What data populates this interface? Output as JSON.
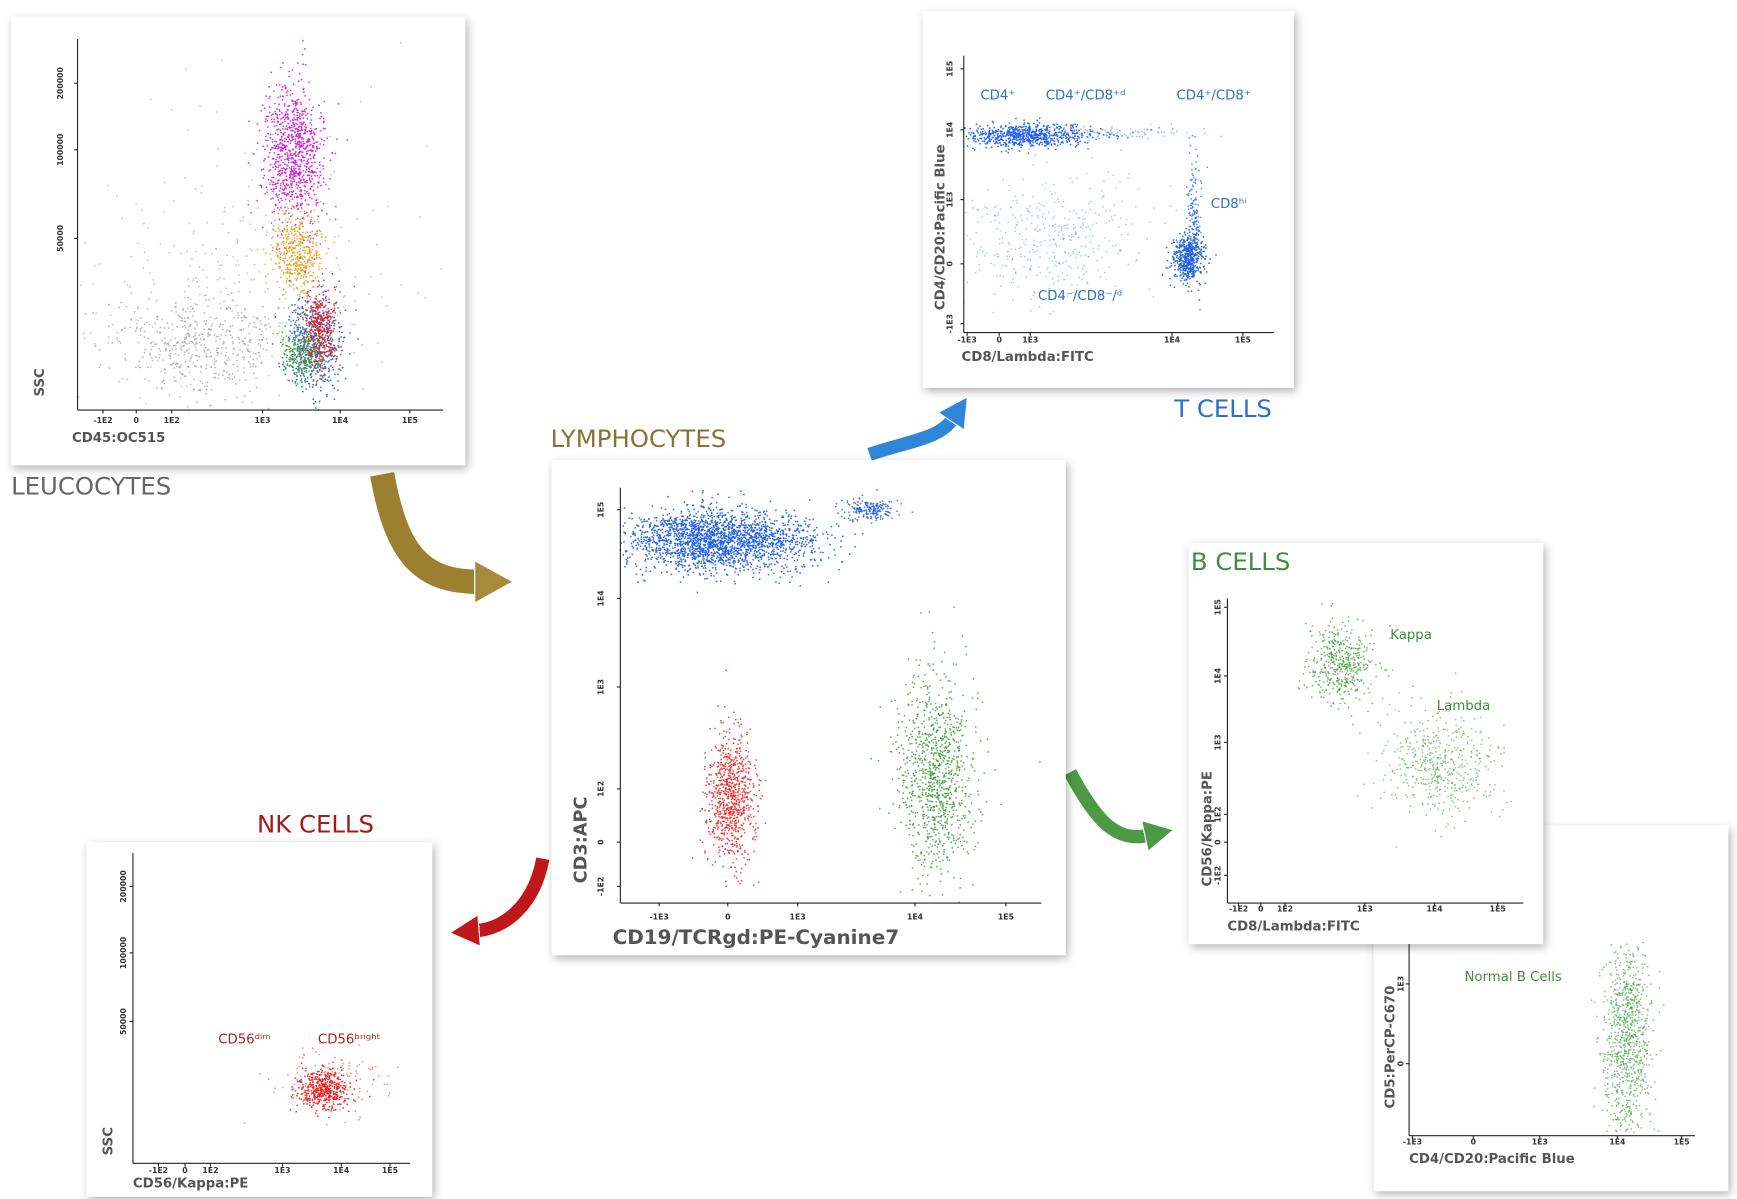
{
  "panels": [
    {
      "caption": "LEUCOCYTES",
      "x_axis": "CD45:OC515",
      "y_axis": "SSC",
      "xticks": [
        "-1E2",
        "0",
        "1E2",
        "1E3",
        "1E4",
        "1E5"
      ],
      "yticks": [
        "200000",
        "100000",
        "50000"
      ],
      "labels": []
    },
    {
      "caption": "T CELLS",
      "x_axis": "CD8/Lambda:FITC",
      "y_axis": "CD4/CD20:Pacific Blue",
      "xticks": [
        "-1E3",
        "0",
        "1E3",
        "1E4",
        "1E5"
      ],
      "yticks": [
        "1E5",
        "1E4",
        "1E3",
        "0",
        "-1E3"
      ],
      "labels": [
        "CD4⁺",
        "CD4⁺/CD8⁺ᵈ",
        "CD4⁺/CD8⁺",
        "CD8ʰⁱ",
        "CD4⁻/CD8⁻/ᵈ"
      ]
    },
    {
      "caption": "LYMPHOCYTES",
      "x_axis": "CD19/TCRgd:PE-Cyanine7",
      "y_axis": "CD3:APC",
      "xticks": [
        "-1E3",
        "0",
        "1E3",
        "1E4",
        "1E5"
      ],
      "yticks": [
        "1E5",
        "1E4",
        "1E3",
        "1E2",
        "0",
        "-1E2"
      ],
      "labels": []
    },
    {
      "caption": "B CELLS",
      "x_axis": "CD8/Lambda:FITC",
      "y_axis": "CD56/Kappa:PE",
      "xticks": [
        "-1E2",
        "0",
        "1E2",
        "1E3",
        "1E4",
        "1E5"
      ],
      "yticks": [
        "1E5",
        "1E4",
        "1E3",
        "1E2",
        "0",
        "-1E2"
      ],
      "labels": [
        "Kappa",
        "Lambda"
      ]
    },
    {
      "x_axis": "CD4/CD20:Pacific Blue",
      "y_axis": "CD5:PerCP-C670",
      "xticks": [
        "-1E3",
        "0",
        "1E3",
        "1E4",
        "1E5"
      ],
      "yticks": [
        "1E3",
        "0"
      ],
      "labels": [
        "Normal B Cells"
      ]
    },
    {
      "caption": "NK CELLS",
      "x_axis": "CD56/Kappa:PE",
      "y_axis": "SSC",
      "xticks": [
        "-1E2",
        "0",
        "1E2",
        "1E3",
        "1E4",
        "1E5"
      ],
      "yticks": [
        "200000",
        "100000",
        "50000"
      ],
      "labels": [
        "CD56ᵈⁱᵐ",
        "CD56ᵇʳⁱᵍʰᵗ"
      ]
    }
  ]
}
